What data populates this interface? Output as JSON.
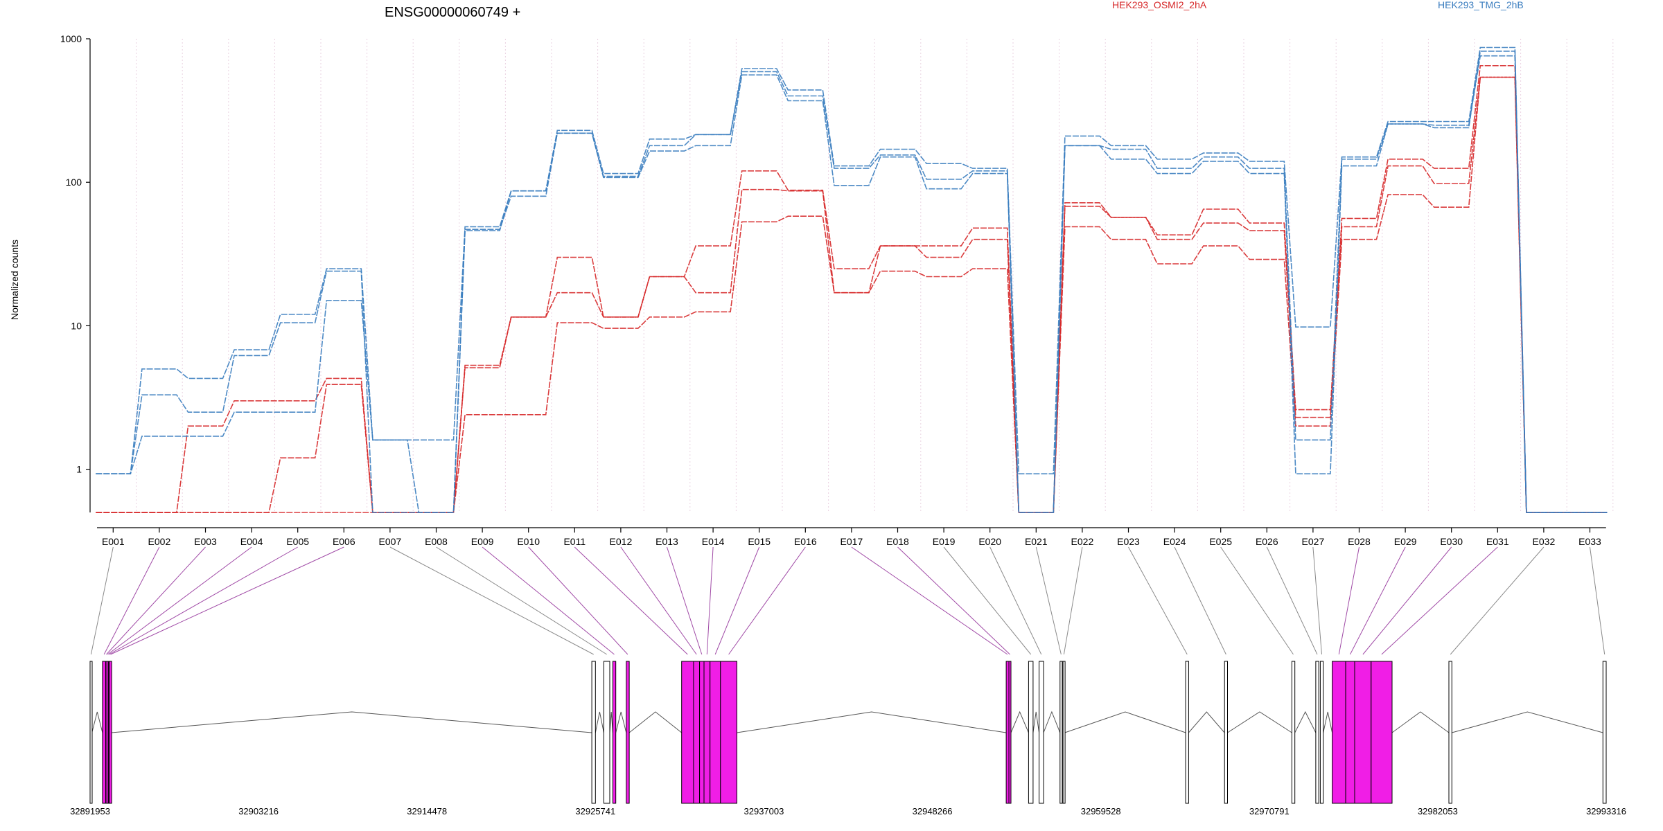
{
  "colors": {
    "series_a": "#d62728",
    "series_b": "#3a7dbf",
    "exon_highlight": "#f01ee6",
    "exon_plain": "#ffffff",
    "connector_highlight": "#a04aa6",
    "connector_plain": "#8a8a8a",
    "axis": "#000000",
    "grid": "#ead2e2"
  },
  "chart_data": {
    "type": "line",
    "title": "ENSG00000060749 +",
    "xlabel": "",
    "ylabel": "Normalized counts",
    "yscale": "log",
    "ylim": [
      0.5,
      1000
    ],
    "yticks": [
      1,
      10,
      100,
      1000
    ],
    "ytick_labels": [
      "1",
      "10",
      "100",
      "1000"
    ],
    "grid": "vertical dotted",
    "legend_placement": "top",
    "categories": [
      "E001",
      "E002",
      "E003",
      "E004",
      "E005",
      "E006",
      "E007",
      "E008",
      "E009",
      "E010",
      "E011",
      "E012",
      "E013",
      "E014",
      "E015",
      "E016",
      "E017",
      "E018",
      "E019",
      "E020",
      "E021",
      "E022",
      "E023",
      "E024",
      "E025",
      "E026",
      "E027",
      "E028",
      "E029",
      "E030",
      "E031",
      "E032",
      "E033"
    ],
    "groups": [
      {
        "name": "HEK293_OSMI2_2hA",
        "color": "#d62728",
        "replicates": [
          [
            0.5,
            0.5,
            0.5,
            0.5,
            1.2,
            3.9,
            0.5,
            0.5,
            5.1,
            11.5,
            30,
            11.5,
            22,
            36,
            120,
            88,
            25,
            36,
            36,
            48,
            0.5,
            72,
            57,
            43,
            65,
            52,
            2.6,
            56,
            145,
            125,
            650,
            0.5,
            0.5
          ],
          [
            0.5,
            0.5,
            2.0,
            3.0,
            3.0,
            4.3,
            0.5,
            0.5,
            5.3,
            11.5,
            17,
            11.5,
            22,
            17,
            89,
            87,
            17,
            36,
            30,
            40,
            0.5,
            68,
            57,
            40,
            52,
            46,
            2.3,
            49,
            130,
            98,
            540,
            0.5,
            0.5
          ],
          [
            0.5,
            0.5,
            0.5,
            0.5,
            0.5,
            0.5,
            0.5,
            0.5,
            2.4,
            2.4,
            10.5,
            9.6,
            11.5,
            12.5,
            53,
            58,
            17,
            24,
            22,
            25,
            0.5,
            49,
            40,
            27,
            36,
            29,
            2.0,
            40,
            82,
            67,
            540,
            0.5,
            0.5
          ]
        ]
      },
      {
        "name": "HEK293_TMG_2hB",
        "color": "#3a7dbf",
        "replicates": [
          [
            0.93,
            5.0,
            4.3,
            6.8,
            12,
            25,
            1.6,
            1.6,
            49,
            87,
            230,
            115,
            200,
            215,
            620,
            440,
            130,
            170,
            135,
            125,
            0.93,
            210,
            180,
            145,
            160,
            140,
            9.8,
            150,
            265,
            265,
            870,
            0.5,
            0.5
          ],
          [
            0.93,
            3.3,
            2.5,
            6.2,
            10.5,
            24,
            0.5,
            0.5,
            47,
            80,
            220,
            110,
            180,
            215,
            590,
            400,
            125,
            155,
            105,
            120,
            0.5,
            180,
            170,
            125,
            150,
            125,
            1.6,
            145,
            255,
            250,
            760,
            0.5,
            0.5
          ],
          [
            0.93,
            1.7,
            1.7,
            2.5,
            2.5,
            15,
            1.6,
            0.5,
            46,
            87,
            220,
            108,
            165,
            180,
            560,
            370,
            95,
            150,
            90,
            115,
            0.5,
            180,
            145,
            115,
            140,
            115,
            0.93,
            130,
            255,
            240,
            820,
            0.5,
            0.5
          ]
        ]
      }
    ]
  },
  "gene_model": {
    "x_ticks": [
      32891953,
      32903216,
      32914478,
      32925741,
      32937003,
      32948266,
      32959528,
      32970791,
      32982053,
      32993316
    ],
    "x_tick_labels": [
      "32891953",
      "32903216",
      "32914478",
      "32925741",
      "32937003",
      "32948266",
      "32959528",
      "32970791",
      "32982053",
      "32993316"
    ],
    "exons": [
      {
        "id": "E001",
        "start": 32891953,
        "end": 32892080,
        "highlight": false
      },
      {
        "id": "E002",
        "start": 32892780,
        "end": 32893000,
        "highlight": true
      },
      {
        "id": "E003",
        "start": 32893000,
        "end": 32893080,
        "highlight": true
      },
      {
        "id": "E004",
        "start": 32893080,
        "end": 32893180,
        "highlight": true
      },
      {
        "id": "E005",
        "start": 32893180,
        "end": 32893260,
        "highlight": true
      },
      {
        "id": "E006",
        "start": 32893260,
        "end": 32893380,
        "highlight": true
      },
      {
        "id": "E007",
        "start": 32925500,
        "end": 32925740,
        "highlight": false
      },
      {
        "id": "E008",
        "start": 32926300,
        "end": 32926700,
        "highlight": false
      },
      {
        "id": "E009",
        "start": 32926900,
        "end": 32927100,
        "highlight": true
      },
      {
        "id": "E010",
        "start": 32927800,
        "end": 32928000,
        "highlight": true
      },
      {
        "id": "E011",
        "start": 32931500,
        "end": 32932300,
        "highlight": true
      },
      {
        "id": "E012",
        "start": 32932300,
        "end": 32932700,
        "highlight": true
      },
      {
        "id": "E013",
        "start": 32932700,
        "end": 32933000,
        "highlight": true
      },
      {
        "id": "E014",
        "start": 32933000,
        "end": 32933400,
        "highlight": true
      },
      {
        "id": "E015",
        "start": 32933400,
        "end": 32934100,
        "highlight": true
      },
      {
        "id": "E016",
        "start": 32934100,
        "end": 32935200,
        "highlight": true
      },
      {
        "id": "E017",
        "start": 32953200,
        "end": 32953380,
        "highlight": true
      },
      {
        "id": "E018",
        "start": 32953380,
        "end": 32953520,
        "highlight": true
      },
      {
        "id": "E019",
        "start": 32954700,
        "end": 32955000,
        "highlight": false
      },
      {
        "id": "E020",
        "start": 32955400,
        "end": 32955700,
        "highlight": false
      },
      {
        "id": "E021",
        "start": 32956800,
        "end": 32956950,
        "highlight": false
      },
      {
        "id": "E022",
        "start": 32957000,
        "end": 32957120,
        "highlight": false
      },
      {
        "id": "E023",
        "start": 32965200,
        "end": 32965400,
        "highlight": false
      },
      {
        "id": "E024",
        "start": 32967800,
        "end": 32968000,
        "highlight": false
      },
      {
        "id": "E025",
        "start": 32972300,
        "end": 32972500,
        "highlight": false
      },
      {
        "id": "E026",
        "start": 32973900,
        "end": 32974100,
        "highlight": false
      },
      {
        "id": "E027",
        "start": 32974200,
        "end": 32974400,
        "highlight": false
      },
      {
        "id": "E028",
        "start": 32975000,
        "end": 32975900,
        "highlight": true
      },
      {
        "id": "E029",
        "start": 32975900,
        "end": 32976500,
        "highlight": true
      },
      {
        "id": "E030",
        "start": 32976500,
        "end": 32977600,
        "highlight": true
      },
      {
        "id": "E031",
        "start": 32977600,
        "end": 32979000,
        "highlight": true
      },
      {
        "id": "E032",
        "start": 32982800,
        "end": 32983000,
        "highlight": false
      },
      {
        "id": "E033",
        "start": 32993100,
        "end": 32993316,
        "highlight": false
      }
    ]
  }
}
